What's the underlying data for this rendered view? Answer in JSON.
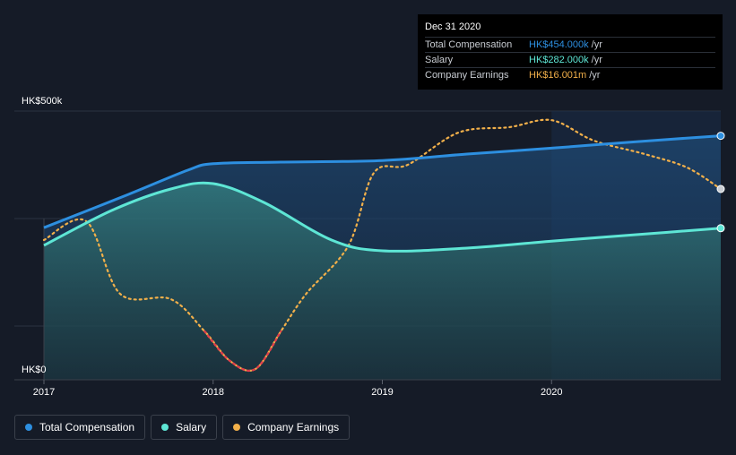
{
  "tooltip": {
    "title": "Dec 31 2020",
    "rows": [
      {
        "label": "Total Compensation",
        "value": "HK$454.000k",
        "unit": "/yr",
        "color": "#2d8fe0"
      },
      {
        "label": "Salary",
        "value": "HK$282.000k",
        "unit": "/yr",
        "color": "#5ee6d5"
      },
      {
        "label": "Company Earnings",
        "value": "HK$16.001m",
        "unit": "/yr",
        "color": "#f2b04a"
      }
    ]
  },
  "legend": [
    {
      "label": "Total Compensation",
      "color": "#2d8fe0"
    },
    {
      "label": "Salary",
      "color": "#5ee6d5"
    },
    {
      "label": "Company Earnings",
      "color": "#f2b04a"
    }
  ],
  "chart_data": {
    "type": "line",
    "ylabel_top": "HK$500k",
    "ylabel_bottom": "HK$0",
    "ylim": [
      0,
      500
    ],
    "x_ticks": [
      2017,
      2018,
      2019,
      2020
    ],
    "xlim": [
      2017.0,
      2021.0
    ],
    "series": [
      {
        "name": "Total Compensation",
        "color": "#2d8fe0",
        "points": [
          [
            2017.0,
            283
          ],
          [
            2017.5,
            345
          ],
          [
            2017.85,
            390
          ],
          [
            2018.0,
            402
          ],
          [
            2018.4,
            405
          ],
          [
            2019.0,
            408
          ],
          [
            2019.5,
            420
          ],
          [
            2020.0,
            431
          ],
          [
            2020.5,
            443
          ],
          [
            2021.0,
            454
          ]
        ]
      },
      {
        "name": "Salary",
        "color": "#5ee6d5",
        "points": [
          [
            2017.0,
            250
          ],
          [
            2017.4,
            315
          ],
          [
            2017.75,
            355
          ],
          [
            2018.0,
            365
          ],
          [
            2018.3,
            330
          ],
          [
            2018.7,
            260
          ],
          [
            2019.0,
            240
          ],
          [
            2019.5,
            245
          ],
          [
            2020.0,
            258
          ],
          [
            2020.5,
            270
          ],
          [
            2021.0,
            282
          ]
        ]
      },
      {
        "name": "Company Earnings",
        "color": "#f2b04a",
        "negative_color": "#e0404a",
        "points": [
          [
            2017.0,
            260
          ],
          [
            2017.25,
            295
          ],
          [
            2017.45,
            160
          ],
          [
            2017.75,
            150
          ],
          [
            2017.95,
            90
          ],
          [
            2018.1,
            35
          ],
          [
            2018.25,
            20
          ],
          [
            2018.4,
            90
          ],
          [
            2018.55,
            160
          ],
          [
            2018.8,
            250
          ],
          [
            2018.95,
            385
          ],
          [
            2019.15,
            400
          ],
          [
            2019.45,
            460
          ],
          [
            2019.75,
            470
          ],
          [
            2020.0,
            483
          ],
          [
            2020.25,
            445
          ],
          [
            2020.55,
            420
          ],
          [
            2020.8,
            395
          ],
          [
            2021.0,
            355
          ]
        ]
      }
    ],
    "highlight_from": 2020.0,
    "grid": true
  }
}
